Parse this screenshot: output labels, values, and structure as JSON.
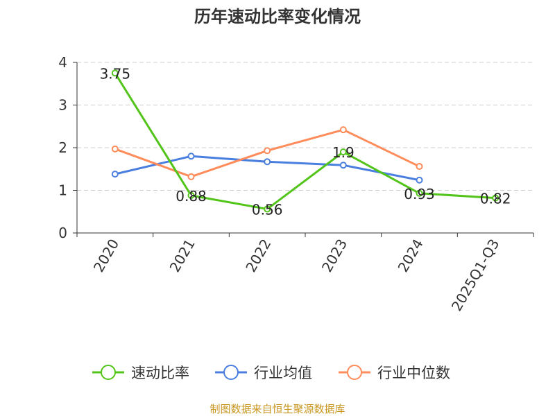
{
  "chart_data": {
    "type": "line",
    "title": "历年速动比率变化情况",
    "categories": [
      "2020",
      "2021",
      "2022",
      "2023",
      "2024",
      "2025Q1-Q3"
    ],
    "ylim": [
      0,
      4
    ],
    "yticks": [
      "0",
      "1",
      "2",
      "3",
      "4"
    ],
    "grid": true,
    "legend_position": "bottom",
    "series": [
      {
        "name": "速动比率",
        "color": "#52c41a",
        "values": [
          3.75,
          0.88,
          0.56,
          1.9,
          0.93,
          0.82
        ],
        "labels": [
          "3.75",
          "0.88",
          "0.56",
          "1.9",
          "0.93",
          "0.82"
        ]
      },
      {
        "name": "行业均值",
        "color": "#4a7fe0",
        "values": [
          1.38,
          1.8,
          1.67,
          1.59,
          1.24,
          null
        ]
      },
      {
        "name": "行业中位数",
        "color": "#ff8c5a",
        "values": [
          1.97,
          1.32,
          1.93,
          2.42,
          1.56,
          null
        ]
      }
    ]
  },
  "footer": "制图数据来自恒生聚源数据库"
}
